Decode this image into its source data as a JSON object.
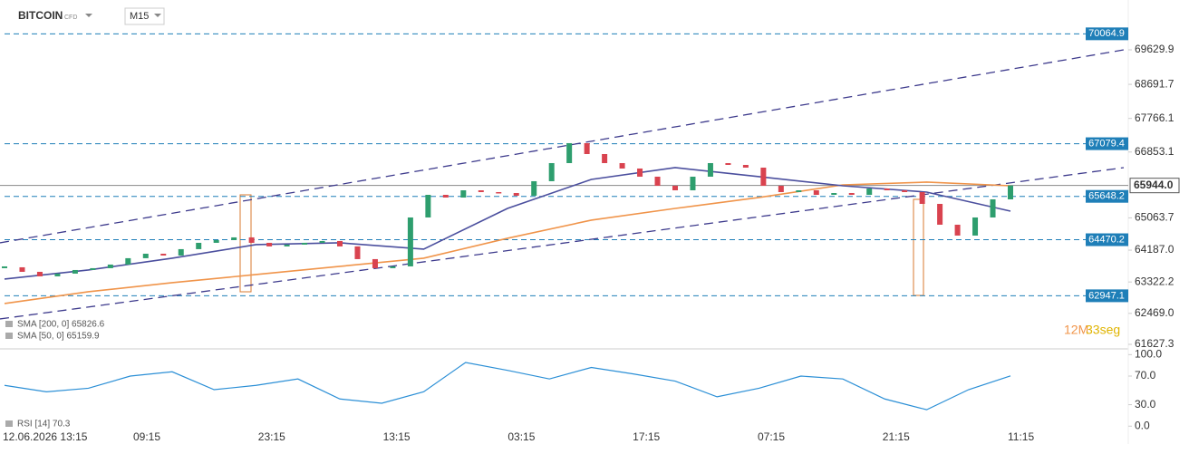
{
  "chart_data": [
    {
      "type": "candlestick",
      "title": "BITCOIN",
      "instrument_type": "CFD",
      "timeframe": "M15",
      "up_color": "#2e9e6e",
      "down_color": "#d9434f",
      "closes": [
        63721,
        63598,
        63475,
        63549,
        63647,
        63697,
        63795,
        63968,
        64090,
        64041,
        64214,
        64386,
        64460,
        64534,
        64386,
        64288,
        64337,
        64386,
        64435,
        64288,
        63943,
        63697,
        63746,
        65075,
        65690,
        65616,
        65813,
        65764,
        65739,
        65666,
        66060,
        66552,
        67094,
        66798,
        66552,
        66405,
        66183,
        65936,
        65813,
        66183,
        66552,
        66503,
        66429,
        65936,
        65764,
        65813,
        65690,
        65739,
        65690,
        65862,
        65813,
        65764,
        65444,
        64878,
        64583,
        65075,
        65567,
        65944
      ],
      "overlays": [
        {
          "name": "SMA [200, 0] 65826.6",
          "color": "#f0944a",
          "values": [
            62736,
            63056,
            63302,
            63524,
            63746,
            63968,
            64509,
            65002,
            65321,
            65617,
            65961,
            66035,
            65936
          ]
        },
        {
          "name": "SMA [50, 0] 65159.9",
          "color": "#4b4f9e",
          "values": [
            63401,
            63647,
            63968,
            64337,
            64386,
            64214,
            65321,
            66109,
            66429,
            66183,
            65936,
            65764,
            65247
          ]
        }
      ],
      "trendlines": [
        {
          "color": "#3d3a8c",
          "values": [
            64386,
            69630
          ]
        },
        {
          "color": "#3d3a8c",
          "values": [
            62318,
            66429
          ]
        }
      ],
      "levels": [
        70064.9,
        67079.4,
        65648.2,
        64470.2,
        62947.1
      ],
      "level_color": "#1f7fb8",
      "current_price": {
        "value": 65944.0,
        "label": "65944.0"
      },
      "ylim": [
        61504,
        70984
      ],
      "yticks": [
        69629.9,
        68691.7,
        67766.1,
        66853.1,
        65063.7,
        {
          "value": 64187.0,
          "label": "64187.0"
        },
        63322.2,
        {
          "value": 62469.0,
          "label": "62469.0"
        },
        61627.3
      ],
      "xticks": [
        "12.06.2026 13:15",
        "09:15",
        "23:15",
        "13:15",
        "03:15",
        "17:15",
        "07:15",
        "21:15",
        "11:15"
      ],
      "countdown": {
        "minutes": "12M",
        "seconds": "33seg"
      }
    },
    {
      "type": "line",
      "name": "RSI [14] 70.3",
      "color": "#2b8fd6",
      "values": [
        57,
        48,
        53,
        70,
        76,
        51,
        57,
        66,
        38,
        32,
        48,
        89,
        78,
        66,
        82,
        73,
        63,
        41,
        53,
        70,
        66,
        38,
        23,
        51,
        70.3
      ],
      "ylim": [
        -25,
        108
      ],
      "yticks": [
        {
          "value": 100,
          "label": "100.0"
        },
        {
          "value": 70,
          "label": "70.0"
        },
        {
          "value": 30,
          "label": "30.0"
        },
        {
          "value": 0,
          "label": "0.0"
        }
      ]
    }
  ]
}
